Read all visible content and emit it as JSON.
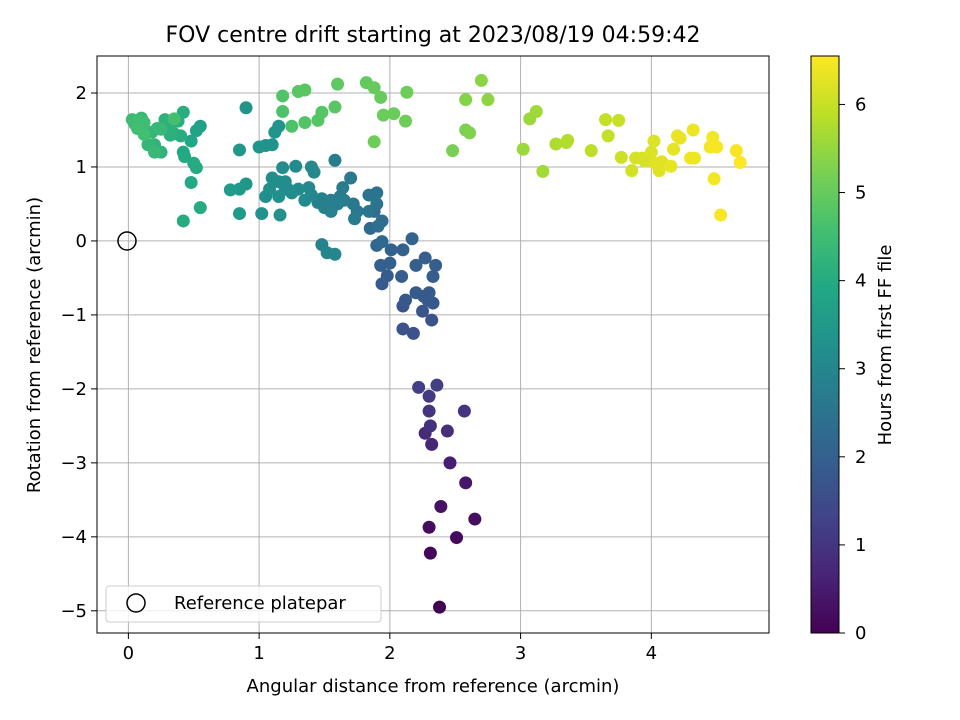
{
  "chart_data": {
    "type": "scatter",
    "title": "FOV centre drift starting at 2023/08/19 04:59:42",
    "xlabel": "Angular distance from reference (arcmin)",
    "ylabel": "Rotation from reference (arcmin)",
    "xlim": [
      -0.24,
      4.9
    ],
    "ylim": [
      -5.3,
      2.5
    ],
    "xticks": [
      0,
      1,
      2,
      3,
      4
    ],
    "yticks": [
      -5,
      -4,
      -3,
      -2,
      -1,
      0,
      1,
      2
    ],
    "grid": true,
    "legend": {
      "position": "lower left",
      "entries": [
        "Reference platepar"
      ]
    },
    "colorbar": {
      "label": "Hours from first FF file",
      "colormap": "viridis",
      "range": [
        0,
        6.55
      ],
      "ticks": [
        0,
        1,
        2,
        3,
        4,
        5,
        6
      ]
    },
    "reference_point": {
      "x": 0,
      "y": 0,
      "label": "Reference platepar"
    },
    "colors": {
      "viridis": [
        "#440154",
        "#482475",
        "#414487",
        "#355f8d",
        "#2a788e",
        "#21918c",
        "#22a884",
        "#44bf70",
        "#7ad151",
        "#bddf26",
        "#fde725"
      ],
      "grid": "#b0b0b0"
    },
    "points": [
      [
        2.38,
        -4.95,
        0.02
      ],
      [
        2.31,
        -4.22,
        0.1
      ],
      [
        2.51,
        -4.01,
        0.15
      ],
      [
        2.3,
        -3.87,
        0.2
      ],
      [
        2.65,
        -3.76,
        0.25
      ],
      [
        2.39,
        -3.59,
        0.32
      ],
      [
        2.58,
        -3.27,
        0.4
      ],
      [
        2.46,
        -3.0,
        0.55
      ],
      [
        2.32,
        -2.75,
        0.7
      ],
      [
        2.27,
        -2.6,
        0.8
      ],
      [
        2.44,
        -2.57,
        0.85
      ],
      [
        2.31,
        -2.5,
        0.9
      ],
      [
        2.3,
        -2.3,
        1.0
      ],
      [
        2.57,
        -2.3,
        1.0
      ],
      [
        2.3,
        -2.1,
        1.1
      ],
      [
        2.22,
        -1.98,
        1.2
      ],
      [
        2.36,
        -1.95,
        1.2
      ],
      [
        2.18,
        -1.25,
        1.6
      ],
      [
        2.1,
        -1.19,
        1.65
      ],
      [
        2.32,
        -1.07,
        1.7
      ],
      [
        2.25,
        -0.95,
        1.72
      ],
      [
        2.1,
        -0.88,
        1.75
      ],
      [
        2.33,
        -0.84,
        1.78
      ],
      [
        2.12,
        -0.8,
        1.8
      ],
      [
        2.29,
        -0.8,
        1.8
      ],
      [
        2.26,
        -0.75,
        1.82
      ],
      [
        2.2,
        -0.7,
        1.85
      ],
      [
        2.3,
        -0.7,
        1.85
      ],
      [
        1.94,
        -0.58,
        1.88
      ],
      [
        1.98,
        -0.47,
        1.9
      ],
      [
        2.09,
        -0.48,
        1.92
      ],
      [
        2.33,
        -0.48,
        1.93
      ],
      [
        2.2,
        -0.33,
        1.95
      ],
      [
        2.35,
        -0.33,
        1.95
      ],
      [
        1.93,
        -0.33,
        1.96
      ],
      [
        2.27,
        -0.23,
        1.98
      ],
      [
        2.0,
        -0.3,
        2.0
      ],
      [
        2.1,
        -0.12,
        2.05
      ],
      [
        2.01,
        -0.12,
        2.08
      ],
      [
        2.17,
        0.03,
        2.1
      ],
      [
        1.9,
        -0.06,
        2.15
      ],
      [
        1.94,
        -0.01,
        2.2
      ],
      [
        1.85,
        0.17,
        2.25
      ],
      [
        1.94,
        0.27,
        2.3
      ],
      [
        1.88,
        0.4,
        2.35
      ],
      [
        1.91,
        0.2,
        2.4
      ],
      [
        1.84,
        0.62,
        2.45
      ],
      [
        1.9,
        0.5,
        2.5
      ],
      [
        1.9,
        0.65,
        2.5
      ],
      [
        1.84,
        0.4,
        2.55
      ],
      [
        1.75,
        0.4,
        2.6
      ],
      [
        1.72,
        0.5,
        2.6
      ],
      [
        1.7,
        0.85,
        2.65
      ],
      [
        1.73,
        0.3,
        2.7
      ],
      [
        1.62,
        0.6,
        2.7
      ],
      [
        1.64,
        0.72,
        2.7
      ],
      [
        1.65,
        0.55,
        2.75
      ],
      [
        1.58,
        1.09,
        2.75
      ],
      [
        1.55,
        0.55,
        2.75
      ],
      [
        1.6,
        0.5,
        2.8
      ],
      [
        1.55,
        0.4,
        2.8
      ],
      [
        1.5,
        0.45,
        2.85
      ],
      [
        1.45,
        0.52,
        2.85
      ],
      [
        1.48,
        0.57,
        2.85
      ],
      [
        1.48,
        -0.05,
        2.9
      ],
      [
        1.52,
        -0.16,
        2.95
      ],
      [
        1.58,
        -0.18,
        3.0
      ],
      [
        1.4,
        0.62,
        3.0
      ],
      [
        1.4,
        1.0,
        3.05
      ],
      [
        1.38,
        0.72,
        3.05
      ],
      [
        1.42,
        0.93,
        3.05
      ],
      [
        1.35,
        0.55,
        3.1
      ],
      [
        1.3,
        0.7,
        3.1
      ],
      [
        1.28,
        1.01,
        3.1
      ],
      [
        1.25,
        0.65,
        3.15
      ],
      [
        1.22,
        0.7,
        3.15
      ],
      [
        1.2,
        0.8,
        3.15
      ],
      [
        1.18,
        0.99,
        3.15
      ],
      [
        1.2,
        0.7,
        3.15
      ],
      [
        1.15,
        0.8,
        3.2
      ],
      [
        1.1,
        0.85,
        3.2
      ],
      [
        1.08,
        0.7,
        3.25
      ],
      [
        1.05,
        0.6,
        3.25
      ],
      [
        1.15,
        0.6,
        3.25
      ],
      [
        1.16,
        0.35,
        3.3
      ],
      [
        1.02,
        0.37,
        3.3
      ],
      [
        1.05,
        1.29,
        3.3
      ],
      [
        1.1,
        1.3,
        3.3
      ],
      [
        1.12,
        1.47,
        3.35
      ],
      [
        1.15,
        1.55,
        3.35
      ],
      [
        1.0,
        1.27,
        3.4
      ],
      [
        0.9,
        1.8,
        3.4
      ],
      [
        0.85,
        1.23,
        3.45
      ],
      [
        0.9,
        0.77,
        3.45
      ],
      [
        0.85,
        0.7,
        3.5
      ],
      [
        0.85,
        0.37,
        3.55
      ],
      [
        0.78,
        0.69,
        3.6
      ],
      [
        0.55,
        1.55,
        3.7
      ],
      [
        0.52,
        1.49,
        3.8
      ],
      [
        0.48,
        1.35,
        3.9
      ],
      [
        0.42,
        1.2,
        3.9
      ],
      [
        0.48,
        0.79,
        3.95
      ],
      [
        0.43,
        1.14,
        3.95
      ],
      [
        0.5,
        1.05,
        4.0
      ],
      [
        0.52,
        0.99,
        4.0
      ],
      [
        0.42,
        0.27,
        4.0
      ],
      [
        0.55,
        0.45,
        4.0
      ],
      [
        0.4,
        1.42,
        4.05
      ],
      [
        0.42,
        1.74,
        4.05
      ],
      [
        0.38,
        1.62,
        4.1
      ],
      [
        0.35,
        1.45,
        4.1
      ],
      [
        0.32,
        1.43,
        4.15
      ],
      [
        0.32,
        1.56,
        4.15
      ],
      [
        0.28,
        1.64,
        4.2
      ],
      [
        0.25,
        1.2,
        4.25
      ],
      [
        0.2,
        1.3,
        4.25
      ],
      [
        0.18,
        1.47,
        4.3
      ],
      [
        0.15,
        1.3,
        4.3
      ],
      [
        0.22,
        1.52,
        4.35
      ],
      [
        0.25,
        1.51,
        4.35
      ],
      [
        0.2,
        1.2,
        4.4
      ],
      [
        0.1,
        1.66,
        4.4
      ],
      [
        0.05,
        1.58,
        4.45
      ],
      [
        0.03,
        1.64,
        4.45
      ],
      [
        0.08,
        1.62,
        4.5
      ],
      [
        0.12,
        1.6,
        4.5
      ],
      [
        0.12,
        1.44,
        4.55
      ],
      [
        0.07,
        1.52,
        4.55
      ],
      [
        0.35,
        1.65,
        4.6
      ],
      [
        1.18,
        1.75,
        4.7
      ],
      [
        1.25,
        1.55,
        4.7
      ],
      [
        1.18,
        1.96,
        4.75
      ],
      [
        1.35,
        1.6,
        4.75
      ],
      [
        1.45,
        1.63,
        4.8
      ],
      [
        1.48,
        1.74,
        4.8
      ],
      [
        1.58,
        1.81,
        4.85
      ],
      [
        1.3,
        2.02,
        4.85
      ],
      [
        1.35,
        2.04,
        4.85
      ],
      [
        1.6,
        2.12,
        4.9
      ],
      [
        1.82,
        2.14,
        4.95
      ],
      [
        1.88,
        2.07,
        5.0
      ],
      [
        1.93,
        1.94,
        5.0
      ],
      [
        1.95,
        1.7,
        5.05
      ],
      [
        2.03,
        1.72,
        5.05
      ],
      [
        2.12,
        1.62,
        5.1
      ],
      [
        2.13,
        2.01,
        5.1
      ],
      [
        1.88,
        1.34,
        5.1
      ],
      [
        2.48,
        1.22,
        5.2
      ],
      [
        2.58,
        1.5,
        5.25
      ],
      [
        2.61,
        1.46,
        5.3
      ],
      [
        2.58,
        1.91,
        5.35
      ],
      [
        2.7,
        2.17,
        5.4
      ],
      [
        2.75,
        1.91,
        5.45
      ],
      [
        3.02,
        1.24,
        5.55
      ],
      [
        3.07,
        1.65,
        5.55
      ],
      [
        3.12,
        1.75,
        5.6
      ],
      [
        3.17,
        0.94,
        5.65
      ],
      [
        3.27,
        1.31,
        5.75
      ],
      [
        3.35,
        1.33,
        5.8
      ],
      [
        3.36,
        1.36,
        5.8
      ],
      [
        3.54,
        1.22,
        5.9
      ],
      [
        3.65,
        1.64,
        5.95
      ],
      [
        3.67,
        1.42,
        5.95
      ],
      [
        3.75,
        1.63,
        6.0
      ],
      [
        3.77,
        1.13,
        6.05
      ],
      [
        3.85,
        0.95,
        6.1
      ],
      [
        3.88,
        1.12,
        6.15
      ],
      [
        3.93,
        1.12,
        6.15
      ],
      [
        3.95,
        1.08,
        6.15
      ],
      [
        4.0,
        1.2,
        6.2
      ],
      [
        4.02,
        1.35,
        6.2
      ],
      [
        4.03,
        1.05,
        6.25
      ],
      [
        4.06,
        0.95,
        6.25
      ],
      [
        4.08,
        1.07,
        6.25
      ],
      [
        4.15,
        1.01,
        6.3
      ],
      [
        4.17,
        1.24,
        6.3
      ],
      [
        4.2,
        1.42,
        6.35
      ],
      [
        4.22,
        1.39,
        6.35
      ],
      [
        4.3,
        1.12,
        6.4
      ],
      [
        4.33,
        1.12,
        6.4
      ],
      [
        4.32,
        1.5,
        6.4
      ],
      [
        4.45,
        1.27,
        6.45
      ],
      [
        4.47,
        1.4,
        6.45
      ],
      [
        4.48,
        0.84,
        6.45
      ],
      [
        4.5,
        1.27,
        6.5
      ],
      [
        4.53,
        0.35,
        6.5
      ],
      [
        4.65,
        1.22,
        6.5
      ],
      [
        4.68,
        1.06,
        6.55
      ]
    ]
  }
}
